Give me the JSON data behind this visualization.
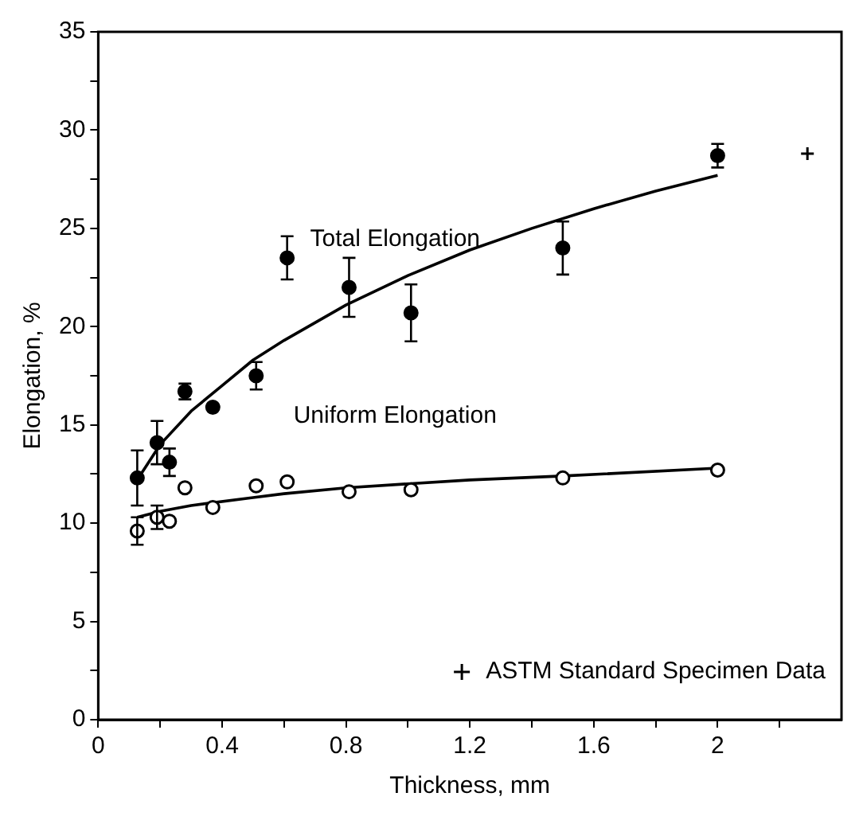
{
  "chart_data": {
    "type": "scatter",
    "xlabel": "Thickness, mm",
    "ylabel": "Elongation, %",
    "xlim": [
      0,
      2.4
    ],
    "ylim": [
      0,
      35
    ],
    "xticks": [
      0,
      {
        "value": 0.2,
        "label": null
      },
      0.4,
      {
        "value": 0.6,
        "label": null
      },
      0.8,
      {
        "value": 1.0,
        "label": null
      },
      1.2,
      {
        "value": 1.4,
        "label": null
      },
      1.6,
      {
        "value": 1.8,
        "label": null
      },
      2,
      {
        "value": 2.2,
        "label": null
      }
    ],
    "yticks": [
      0,
      {
        "value": 2.5,
        "label": null
      },
      5,
      {
        "value": 7.5,
        "label": null
      },
      10,
      {
        "value": 12.5,
        "label": null
      },
      15,
      {
        "value": 17.5,
        "label": null
      },
      20,
      {
        "value": 22.5,
        "label": null
      },
      25,
      {
        "value": 27.5,
        "label": null
      },
      30,
      {
        "value": 32.5,
        "label": null
      },
      35
    ],
    "grid": false,
    "legend": "bottom right",
    "series": [
      {
        "name": "Total Elongation",
        "type": "scatter",
        "marker": "circle",
        "color": "#000000",
        "x": [
          0.126,
          0.19,
          0.23,
          0.28,
          0.37,
          0.51,
          0.61,
          0.81,
          1.01,
          1.5,
          2.0
        ],
        "values": [
          12.3,
          14.1,
          13.1,
          16.7,
          15.9,
          17.5,
          23.5,
          22.0,
          20.7,
          24.0,
          28.7
        ],
        "errors": [
          1.4,
          1.1,
          0.7,
          0.4,
          null,
          0.7,
          1.1,
          1.5,
          1.45,
          1.35,
          0.6
        ]
      },
      {
        "name": "Uniform Elongation",
        "type": "scatter",
        "marker": "circle",
        "color": "#000000",
        "x": [
          0.126,
          0.19,
          0.23,
          0.28,
          0.37,
          0.51,
          0.61,
          0.81,
          1.01,
          1.5,
          2.0
        ],
        "values": [
          9.6,
          10.3,
          10.1,
          11.8,
          10.8,
          11.9,
          12.1,
          11.6,
          11.7,
          12.3,
          12.7
        ],
        "errors": [
          0.7,
          0.6,
          null,
          null,
          null,
          null,
          null,
          null,
          null,
          null,
          null
        ]
      },
      {
        "type": "line",
        "marker": "none",
        "line_style": "solid",
        "color": "#000000",
        "x": [
          0.126,
          0.2,
          0.3,
          0.4,
          0.5,
          0.6,
          0.8,
          1.0,
          1.2,
          1.4,
          1.6,
          1.8,
          2.0
        ],
        "values": [
          12.2,
          14.0,
          15.7,
          17.0,
          18.3,
          19.3,
          21.1,
          22.6,
          23.9,
          25.0,
          26.0,
          26.9,
          27.7
        ]
      },
      {
        "type": "line",
        "marker": "none",
        "line_style": "solid",
        "color": "#000000",
        "x": [
          0.126,
          0.2,
          0.3,
          0.5,
          0.6,
          0.8,
          1.0,
          1.2,
          1.5,
          2.0
        ],
        "values": [
          10.3,
          10.6,
          10.9,
          11.3,
          11.5,
          11.8,
          12.0,
          12.2,
          12.4,
          12.8
        ]
      },
      {
        "name": "ASTM Standard Specimen Data",
        "type": "scatter",
        "marker": "cross",
        "color": "#000000",
        "x": [
          2.29
        ],
        "values": [
          28.8
        ]
      }
    ]
  }
}
